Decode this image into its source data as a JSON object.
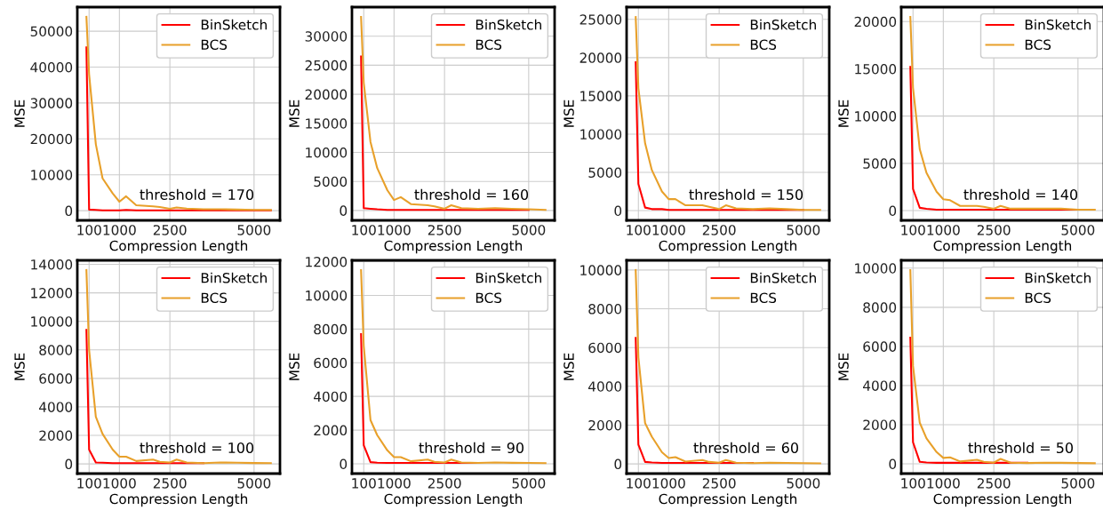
{
  "chart_data": [
    {
      "type": "line",
      "xlabel": "Compression Length",
      "ylabel": "MSE",
      "annotations": [
        "threshold = 170"
      ],
      "x": [
        20,
        100,
        300,
        500,
        800,
        1000,
        1200,
        1500,
        2000,
        2200,
        2500,
        2700,
        3000,
        3500,
        4000,
        4500,
        5000,
        5500
      ],
      "xlim": [
        -250,
        5770
      ],
      "xticks": [
        100,
        1000,
        2500,
        5000
      ],
      "ylim": [
        -2700,
        56700
      ],
      "yticks": [
        0,
        10000,
        20000,
        30000,
        40000,
        50000
      ],
      "grid": true,
      "legend": "top right",
      "series": [
        {
          "name": "BinSketch",
          "color": "#ff0000",
          "values": [
            45500,
            300,
            200,
            100,
            100,
            100,
            200,
            100,
            100,
            100,
            100,
            100,
            100,
            100,
            100,
            100,
            100,
            100
          ]
        },
        {
          "name": "BCS",
          "color": "#e8a02a",
          "values": [
            54000,
            38000,
            18500,
            9000,
            4800,
            2500,
            4000,
            1500,
            1200,
            1000,
            500,
            900,
            600,
            400,
            400,
            300,
            200,
            200
          ]
        }
      ]
    },
    {
      "type": "line",
      "xlabel": "Compression Length",
      "ylabel": "MSE",
      "annotations": [
        "threshold = 160"
      ],
      "x": [
        20,
        100,
        300,
        500,
        800,
        1000,
        1200,
        1500,
        2000,
        2200,
        2500,
        2700,
        3000,
        3500,
        4000,
        4500,
        5000,
        5500
      ],
      "xlim": [
        -250,
        5770
      ],
      "xticks": [
        100,
        1000,
        2500,
        5000
      ],
      "ylim": [
        -1700,
        35000
      ],
      "yticks": [
        0,
        5000,
        10000,
        15000,
        20000,
        25000,
        30000
      ],
      "grid": true,
      "legend": "top right",
      "series": [
        {
          "name": "BinSketch",
          "color": "#ff0000",
          "values": [
            26500,
            400,
            300,
            200,
            100,
            100,
            100,
            100,
            100,
            100,
            100,
            100,
            100,
            100,
            100,
            100,
            100,
            null
          ]
        },
        {
          "name": "BCS",
          "color": "#e8a02a",
          "values": [
            33300,
            22000,
            11800,
            7300,
            3500,
            1800,
            2300,
            1100,
            900,
            700,
            300,
            900,
            400,
            300,
            400,
            300,
            200,
            100
          ]
        }
      ]
    },
    {
      "type": "line",
      "xlabel": "Compression Length",
      "ylabel": "MSE",
      "annotations": [
        "threshold = 150"
      ],
      "x": [
        20,
        100,
        300,
        500,
        800,
        1000,
        1200,
        1500,
        2000,
        2200,
        2500,
        2700,
        3000,
        3500,
        4000,
        4500,
        5000,
        5500
      ],
      "xlim": [
        -250,
        5770
      ],
      "xticks": [
        100,
        1000,
        2500,
        5000
      ],
      "ylim": [
        -1270,
        26600
      ],
      "yticks": [
        0,
        5000,
        10000,
        15000,
        20000,
        25000
      ],
      "grid": true,
      "legend": "top right",
      "series": [
        {
          "name": "BinSketch",
          "color": "#ff0000",
          "values": [
            19400,
            3500,
            400,
            200,
            200,
            100,
            100,
            100,
            100,
            100,
            100,
            100,
            100,
            100,
            100,
            100,
            100,
            null
          ]
        },
        {
          "name": "BCS",
          "color": "#e8a02a",
          "values": [
            25300,
            16000,
            8800,
            5300,
            2500,
            1500,
            1500,
            700,
            700,
            500,
            200,
            700,
            300,
            200,
            300,
            200,
            100,
            100
          ]
        }
      ]
    },
    {
      "type": "line",
      "xlabel": "Compression Length",
      "ylabel": "MSE",
      "annotations": [
        "threshold = 140"
      ],
      "x": [
        20,
        100,
        300,
        500,
        800,
        1000,
        1200,
        1500,
        2000,
        2200,
        2500,
        2700,
        3000,
        3500,
        4000,
        4500,
        5000,
        5500
      ],
      "xlim": [
        -250,
        5770
      ],
      "xticks": [
        100,
        1000,
        2500,
        5000
      ],
      "ylim": [
        -1030,
        21530
      ],
      "yticks": [
        0,
        5000,
        10000,
        15000,
        20000
      ],
      "grid": true,
      "legend": "top right",
      "series": [
        {
          "name": "BinSketch",
          "color": "#ff0000",
          "values": [
            15200,
            2300,
            300,
            200,
            100,
            100,
            100,
            100,
            100,
            100,
            100,
            100,
            100,
            100,
            100,
            100,
            100,
            null
          ]
        },
        {
          "name": "BCS",
          "color": "#e8a02a",
          "values": [
            20500,
            13000,
            6500,
            4000,
            2000,
            1200,
            1100,
            500,
            500,
            400,
            200,
            500,
            200,
            200,
            200,
            200,
            100,
            100
          ]
        }
      ]
    },
    {
      "type": "line",
      "xlabel": "Compression Length",
      "ylabel": "MSE",
      "annotations": [
        "threshold = 100"
      ],
      "x": [
        20,
        100,
        300,
        500,
        800,
        1000,
        1200,
        1500,
        2000,
        2200,
        2500,
        2700,
        3000,
        3500,
        4000,
        4500,
        5000,
        5500
      ],
      "xlim": [
        -250,
        5770
      ],
      "xticks": [
        100,
        1000,
        2500,
        5000
      ],
      "ylim": [
        -680,
        14280
      ],
      "yticks": [
        0,
        2000,
        4000,
        6000,
        8000,
        10000,
        12000,
        14000
      ],
      "grid": true,
      "legend": "top right",
      "series": [
        {
          "name": "BinSketch",
          "color": "#ff0000",
          "values": [
            9400,
            1000,
            100,
            80,
            50,
            50,
            50,
            50,
            50,
            50,
            50,
            50,
            50,
            50,
            null,
            null,
            null,
            null
          ]
        },
        {
          "name": "BCS",
          "color": "#e8a02a",
          "values": [
            13600,
            8000,
            3300,
            2100,
            1000,
            500,
            500,
            200,
            300,
            150,
            100,
            300,
            100,
            50,
            100,
            80,
            60,
            50
          ]
        }
      ]
    },
    {
      "type": "line",
      "xlabel": "Compression Length",
      "ylabel": "MSE",
      "annotations": [
        "threshold = 90"
      ],
      "x": [
        20,
        100,
        300,
        500,
        800,
        1000,
        1200,
        1500,
        2000,
        2200,
        2500,
        2700,
        3000,
        3500,
        4000,
        4500,
        5000,
        5500
      ],
      "xlim": [
        -250,
        5770
      ],
      "xticks": [
        100,
        1000,
        2500,
        5000
      ],
      "ylim": [
        -580,
        12080
      ],
      "yticks": [
        0,
        2000,
        4000,
        6000,
        8000,
        10000,
        12000
      ],
      "grid": true,
      "legend": "top right",
      "series": [
        {
          "name": "BinSketch",
          "color": "#ff0000",
          "values": [
            7700,
            1100,
            100,
            70,
            50,
            50,
            50,
            50,
            50,
            50,
            50,
            50,
            50,
            50,
            null,
            null,
            null,
            null
          ]
        },
        {
          "name": "BCS",
          "color": "#e8a02a",
          "values": [
            11500,
            7000,
            2600,
            1700,
            800,
            400,
            400,
            150,
            250,
            120,
            80,
            250,
            80,
            50,
            80,
            60,
            50,
            40
          ]
        }
      ]
    },
    {
      "type": "line",
      "xlabel": "Compression Length",
      "ylabel": "MSE",
      "annotations": [
        "threshold = 60"
      ],
      "x": [
        20,
        100,
        300,
        500,
        800,
        1000,
        1200,
        1500,
        2000,
        2200,
        2500,
        2700,
        3000,
        3500,
        4000,
        4500,
        5000,
        5500
      ],
      "xlim": [
        -250,
        5770
      ],
      "xticks": [
        100,
        1000,
        2500,
        5000
      ],
      "ylim": [
        -500,
        10500
      ],
      "yticks": [
        0,
        2000,
        4000,
        6000,
        8000,
        10000
      ],
      "grid": true,
      "legend": "top right",
      "series": [
        {
          "name": "BinSketch",
          "color": "#ff0000",
          "values": [
            6500,
            1000,
            100,
            70,
            50,
            50,
            50,
            50,
            50,
            50,
            50,
            50,
            50,
            50,
            null,
            null,
            null,
            null
          ]
        },
        {
          "name": "BCS",
          "color": "#e8a02a",
          "values": [
            10000,
            5500,
            2100,
            1400,
            600,
            300,
            350,
            120,
            200,
            100,
            60,
            200,
            60,
            40,
            60,
            50,
            40,
            30
          ]
        }
      ]
    },
    {
      "type": "line",
      "xlabel": "Compression Length",
      "ylabel": "MSE",
      "annotations": [
        "threshold = 50"
      ],
      "x": [
        20,
        100,
        300,
        500,
        800,
        1000,
        1200,
        1500,
        2000,
        2200,
        2500,
        2700,
        3000,
        3500,
        4000,
        4500,
        5000,
        5500
      ],
      "xlim": [
        -250,
        5770
      ],
      "xticks": [
        100,
        1000,
        2500,
        5000
      ],
      "ylim": [
        -500,
        10400
      ],
      "yticks": [
        0,
        2000,
        4000,
        6000,
        8000,
        10000
      ],
      "grid": true,
      "legend": "top right",
      "series": [
        {
          "name": "BinSketch",
          "color": "#ff0000",
          "values": [
            6450,
            1100,
            100,
            70,
            50,
            50,
            50,
            50,
            50,
            50,
            50,
            50,
            50,
            50,
            null,
            null,
            null,
            null
          ]
        },
        {
          "name": "BCS",
          "color": "#e8a02a",
          "values": [
            9900,
            5000,
            2100,
            1300,
            600,
            300,
            330,
            120,
            200,
            100,
            60,
            250,
            60,
            40,
            60,
            50,
            40,
            30
          ]
        }
      ]
    }
  ]
}
